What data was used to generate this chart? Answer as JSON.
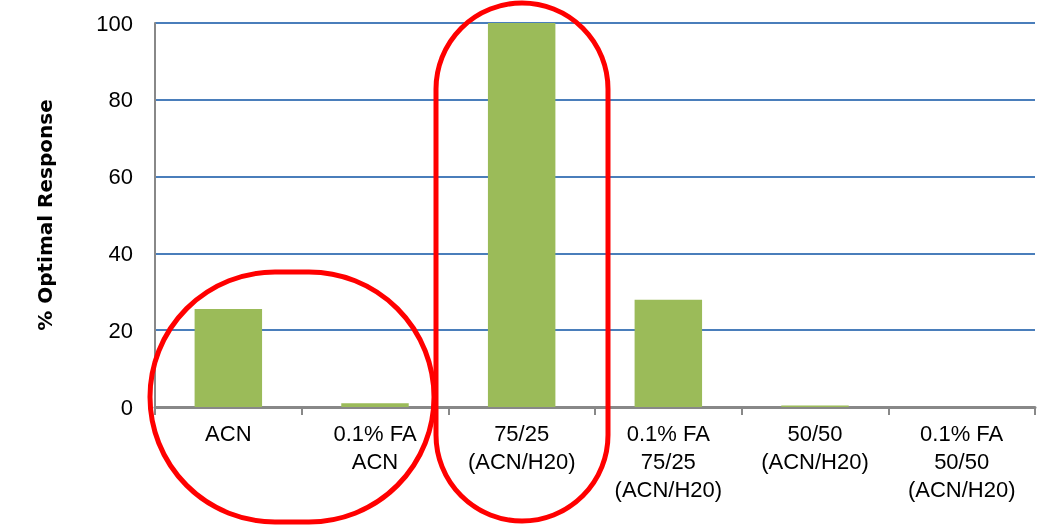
{
  "chart_data": {
    "type": "bar",
    "categories": [
      "ACN",
      "0.1% FA\nACN",
      "75/25\n(ACN/H20)",
      "0.1% FA\n75/25\n(ACN/H20)",
      "50/50\n(ACN/H20)",
      "0.1% FA\n50/50\n(ACN/H20)"
    ],
    "values": [
      25.5,
      1,
      100,
      27.9,
      0.4,
      0
    ],
    "color": "#9bbb59",
    "ylabel": "% Optimal Response",
    "ylim": [
      0,
      100
    ],
    "yticks": [
      0,
      20,
      40,
      60,
      80,
      100
    ],
    "grid": "y"
  }
}
